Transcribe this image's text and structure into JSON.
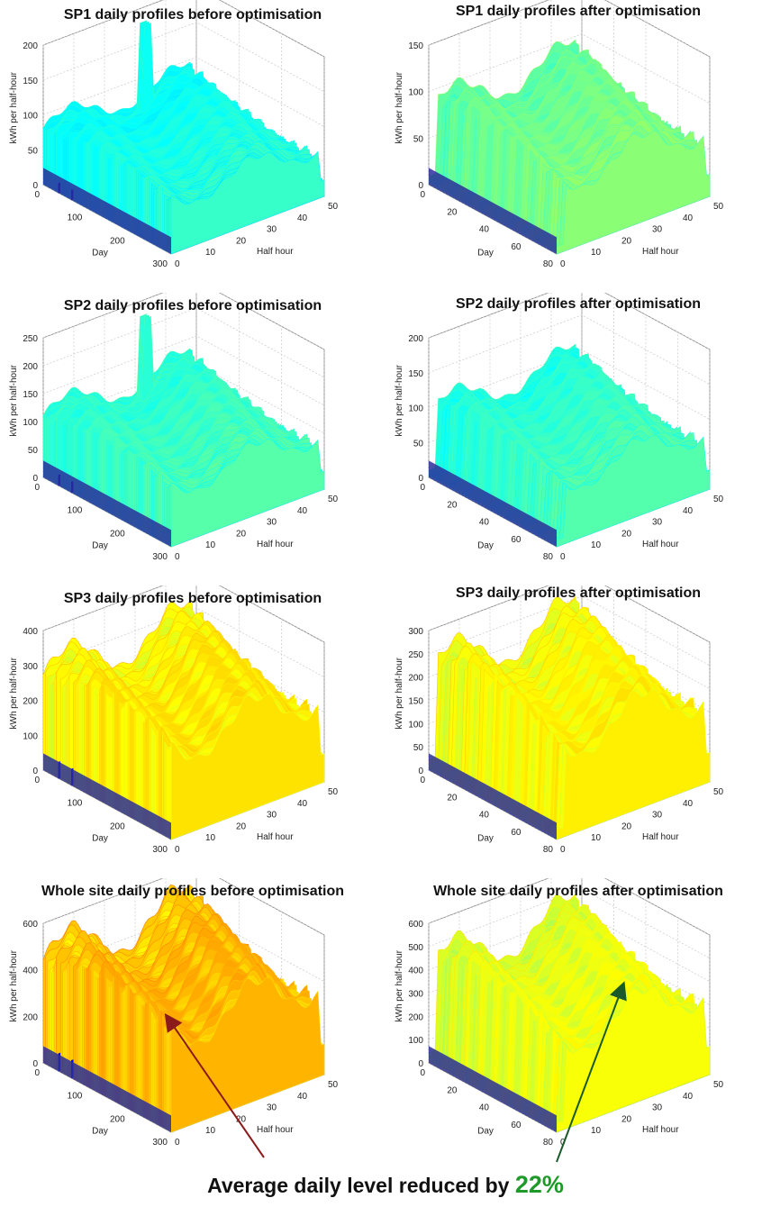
{
  "chart_data": [
    {
      "id": "sp1-before",
      "type": "surface3d",
      "title": "SP1 daily profiles before optimisation",
      "xlabel": "Day",
      "ylabel": "Half hour",
      "zlabel": "kWh per half-hour",
      "x_ticks": [
        "0",
        "100",
        "200",
        "300"
      ],
      "y_ticks": [
        "0",
        "10",
        "20",
        "30",
        "40",
        "50"
      ],
      "z_ticks": [
        "0",
        "50",
        "100",
        "150",
        "200"
      ],
      "day_range": [
        0,
        300
      ],
      "halfhour_range": [
        0,
        48
      ],
      "zlim": [
        0,
        200
      ],
      "base_level": 95,
      "spike": 185,
      "colormap": "jet"
    },
    {
      "id": "sp1-after",
      "type": "surface3d",
      "title": "SP1 daily profiles after optimisation",
      "xlabel": "Day",
      "ylabel": "Half hour",
      "zlabel": "kWh per half-hour",
      "x_ticks": [
        "0",
        "20",
        "40",
        "60",
        "80"
      ],
      "y_ticks": [
        "0",
        "10",
        "20",
        "30",
        "40",
        "50"
      ],
      "z_ticks": [
        "0",
        "50",
        "100",
        "150"
      ],
      "day_range": [
        0,
        80
      ],
      "halfhour_range": [
        0,
        48
      ],
      "zlim": [
        0,
        150
      ],
      "base_level": 95,
      "colormap": "jet"
    },
    {
      "id": "sp2-before",
      "type": "surface3d",
      "title": "SP2 daily profiles before optimisation",
      "xlabel": "Day",
      "ylabel": "Half hour",
      "zlabel": "kWh per half-hour",
      "x_ticks": [
        "0",
        "100",
        "200",
        "300"
      ],
      "y_ticks": [
        "0",
        "10",
        "20",
        "30",
        "40",
        "50"
      ],
      "z_ticks": [
        "0",
        "50",
        "100",
        "150",
        "200",
        "250"
      ],
      "day_range": [
        0,
        300
      ],
      "halfhour_range": [
        0,
        48
      ],
      "zlim": [
        0,
        250
      ],
      "base_level": 130,
      "spike": 230,
      "colormap": "jet"
    },
    {
      "id": "sp2-after",
      "type": "surface3d",
      "title": "SP2 daily profiles after optimisation",
      "xlabel": "Day",
      "ylabel": "Half hour",
      "zlabel": "kWh per half-hour",
      "x_ticks": [
        "0",
        "20",
        "40",
        "60",
        "80"
      ],
      "y_ticks": [
        "0",
        "10",
        "20",
        "30",
        "40",
        "50"
      ],
      "z_ticks": [
        "0",
        "50",
        "100",
        "150",
        "200"
      ],
      "day_range": [
        0,
        80
      ],
      "halfhour_range": [
        0,
        48
      ],
      "zlim": [
        0,
        200
      ],
      "base_level": 110,
      "colormap": "jet"
    },
    {
      "id": "sp3-before",
      "type": "surface3d",
      "title": "SP3 daily profiles before optimisation",
      "xlabel": "Day",
      "ylabel": "Half hour",
      "zlabel": "kWh per half-hour",
      "x_ticks": [
        "0",
        "100",
        "200",
        "300"
      ],
      "y_ticks": [
        "0",
        "10",
        "20",
        "30",
        "40",
        "50"
      ],
      "z_ticks": [
        "0",
        "100",
        "200",
        "300",
        "400"
      ],
      "day_range": [
        0,
        300
      ],
      "halfhour_range": [
        0,
        48
      ],
      "zlim": [
        0,
        400
      ],
      "base_level": 320,
      "colormap": "jet"
    },
    {
      "id": "sp3-after",
      "type": "surface3d",
      "title": "SP3 daily profiles after optimisation",
      "xlabel": "Day",
      "ylabel": "Half hour",
      "zlabel": "kWh per half-hour",
      "x_ticks": [
        "0",
        "20",
        "40",
        "60",
        "80"
      ],
      "y_ticks": [
        "0",
        "10",
        "20",
        "30",
        "40",
        "50"
      ],
      "z_ticks": [
        "0",
        "50",
        "100",
        "150",
        "200",
        "250",
        "300"
      ],
      "day_range": [
        0,
        80
      ],
      "halfhour_range": [
        0,
        48
      ],
      "zlim": [
        0,
        300
      ],
      "base_level": 250,
      "colormap": "jet"
    },
    {
      "id": "site-before",
      "type": "surface3d",
      "title": "Whole site daily profiles before optimisation",
      "xlabel": "Day",
      "ylabel": "Half hour",
      "zlabel": "kWh per half-hour",
      "x_ticks": [
        "0",
        "100",
        "200",
        "300"
      ],
      "y_ticks": [
        "0",
        "10",
        "20",
        "30",
        "40",
        "50"
      ],
      "z_ticks": [
        "0",
        "200",
        "400",
        "600"
      ],
      "day_range": [
        0,
        300
      ],
      "halfhour_range": [
        0,
        48
      ],
      "zlim": [
        0,
        600
      ],
      "base_level": 520,
      "colormap": "jet"
    },
    {
      "id": "site-after",
      "type": "surface3d",
      "title": "Whole site daily profiles after optimisation",
      "xlabel": "Day",
      "ylabel": "Half hour",
      "zlabel": "kWh per half-hour",
      "x_ticks": [
        "0",
        "20",
        "40",
        "60",
        "80"
      ],
      "y_ticks": [
        "0",
        "10",
        "20",
        "30",
        "40",
        "50"
      ],
      "z_ticks": [
        "0",
        "100",
        "200",
        "300",
        "400",
        "500",
        "600"
      ],
      "day_range": [
        0,
        80
      ],
      "halfhour_range": [
        0,
        48
      ],
      "zlim": [
        0,
        600
      ],
      "base_level": 480,
      "colormap": "jet"
    }
  ],
  "caption": {
    "text": "Average daily level reduced by",
    "percent": "22%"
  },
  "colors": {
    "arrow_left": "#8b1a1a",
    "arrow_right": "#1a5a2a",
    "percent": "#1f9a2a"
  }
}
